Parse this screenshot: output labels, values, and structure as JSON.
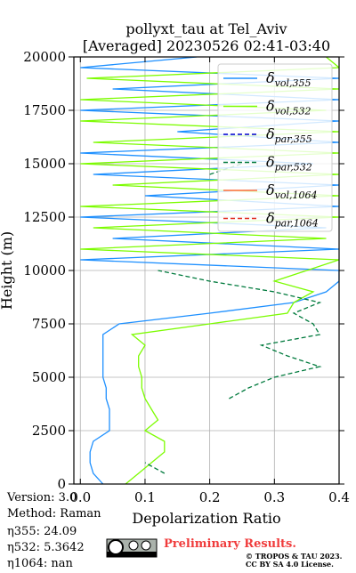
{
  "chart_data": {
    "type": "profile",
    "title": "pollyxt_tau at Tel_Aviv",
    "subtitle": "[Averaged] 20230526 02:41-03:40",
    "x_label": "Depolarization Ratio",
    "y_label": "Height (m)",
    "xlim": [
      -0.01,
      0.4
    ],
    "xticks": [
      {
        "value": 0,
        "label": "0.0"
      },
      0.1,
      0.2,
      0.3,
      0.4
    ],
    "ylim": [
      0,
      20000
    ],
    "yticks": [
      0,
      2500,
      5000,
      7500,
      10000,
      12500,
      15000,
      17500,
      20000
    ],
    "grid": true,
    "legend": "upper right",
    "heights": [
      0,
      500,
      1000,
      1500,
      2000,
      2500,
      3000,
      3500,
      4000,
      4500,
      5000,
      5500,
      6000,
      6500,
      7000,
      7500,
      8000,
      8500,
      9000,
      9500,
      10000,
      10500,
      11000,
      11500,
      12000,
      12500,
      13000,
      13500,
      14000,
      14500,
      15000,
      15500,
      16000,
      16500,
      17000,
      17500,
      18000,
      18500,
      19000,
      19500,
      20000
    ],
    "series": [
      {
        "name": "δvol,355",
        "color": "#1e90ff",
        "linestyle": "solid",
        "values": [
          0.035,
          0.02,
          0.015,
          0.015,
          0.02,
          0.045,
          0.045,
          0.045,
          0.04,
          0.04,
          0.035,
          0.035,
          0.035,
          0.035,
          0.035,
          0.06,
          0.2,
          0.33,
          0.38,
          0.4,
          0.4,
          0.0,
          0.4,
          0.05,
          0.38,
          0.0,
          0.4,
          0.1,
          0.4,
          0.02,
          0.36,
          0.0,
          0.4,
          0.15,
          0.4,
          0.0,
          0.4,
          0.05,
          0.4,
          0.0,
          0.18
        ]
      },
      {
        "name": "δvol,532",
        "color": "#7cfc00",
        "linestyle": "solid",
        "values": [
          0.07,
          0.09,
          0.11,
          0.13,
          0.13,
          0.1,
          0.12,
          0.11,
          0.1,
          0.095,
          0.095,
          0.09,
          0.09,
          0.1,
          0.08,
          0.2,
          0.32,
          0.33,
          0.36,
          0.3,
          0.35,
          0.4,
          0.0,
          0.38,
          0.02,
          0.4,
          0.0,
          0.4,
          0.05,
          0.4,
          0.0,
          0.4,
          0.02,
          0.4,
          0.0,
          0.38,
          0.0,
          0.4,
          0.01,
          0.4,
          0.38
        ]
      },
      {
        "name": "δpar,355",
        "color": "#0000cd",
        "linestyle": "dashed",
        "values": [
          null,
          null,
          null,
          null,
          null,
          null,
          null,
          null,
          null,
          null,
          null,
          null,
          null,
          null,
          null,
          null,
          null,
          null,
          null,
          null,
          null,
          null,
          null,
          null,
          null,
          null,
          null,
          null,
          null,
          null,
          null,
          null,
          null,
          null,
          null,
          null,
          null,
          null,
          null,
          null,
          null
        ]
      },
      {
        "name": "δpar,532",
        "color": "#007a3d",
        "linestyle": "dashed",
        "values": [
          null,
          0.13,
          0.1,
          null,
          null,
          null,
          null,
          null,
          0.23,
          0.26,
          0.3,
          0.37,
          0.32,
          0.28,
          0.37,
          0.36,
          0.33,
          0.37,
          0.3,
          0.2,
          0.12,
          null,
          null,
          null,
          null,
          null,
          null,
          null,
          null,
          0.2,
          0.25,
          null,
          null,
          null,
          null,
          null,
          null,
          null,
          null,
          null,
          null
        ]
      },
      {
        "name": "δvol,1064",
        "color": "#ff6d3a",
        "linestyle": "solid",
        "values": [
          null,
          null,
          null,
          null,
          null,
          null,
          null,
          null,
          null,
          null,
          null,
          null,
          null,
          null,
          null,
          null,
          null,
          null,
          null,
          null,
          null,
          null,
          null,
          null,
          null,
          null,
          null,
          null,
          null,
          null,
          null,
          null,
          null,
          null,
          null,
          null,
          null,
          null,
          null,
          null,
          null
        ]
      },
      {
        "name": "δpar,1064",
        "color": "#e0281b",
        "linestyle": "dashed",
        "values": [
          null,
          null,
          null,
          null,
          null,
          null,
          null,
          null,
          null,
          null,
          null,
          null,
          null,
          null,
          null,
          null,
          null,
          null,
          null,
          null,
          null,
          null,
          null,
          null,
          null,
          null,
          null,
          null,
          null,
          null,
          null,
          null,
          null,
          null,
          null,
          null,
          null,
          null,
          null,
          null,
          null
        ]
      }
    ]
  },
  "info": [
    "Version: 3.0",
    "Method: Raman",
    "η355:  24.09",
    "η532: 5.3642",
    "η1064:    nan"
  ],
  "notice": "Preliminary Results.",
  "copyright": [
    "© TROPOS & TAU 2023.",
    "CC BY SA 4.0 License."
  ]
}
